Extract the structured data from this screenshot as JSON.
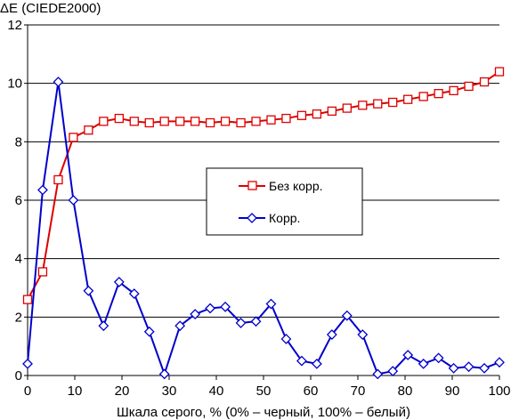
{
  "chart_data": {
    "type": "line",
    "title": "",
    "ylabel": "ΔE (CIEDE2000)",
    "xlabel": "Шкала серого, % (0% – черный, 100% – белый)",
    "xlim": [
      0,
      100
    ],
    "ylim": [
      0,
      12
    ],
    "xticks": [
      0,
      10,
      20,
      30,
      40,
      50,
      60,
      70,
      80,
      90,
      100
    ],
    "yticks": [
      0,
      2,
      4,
      6,
      8,
      10,
      12
    ],
    "grid": "horizontal",
    "legend_position": "center-right",
    "x": [
      0,
      3.2,
      6.5,
      9.7,
      12.9,
      16.1,
      19.4,
      22.6,
      25.8,
      29.0,
      32.3,
      35.5,
      38.7,
      41.9,
      45.2,
      48.4,
      51.6,
      54.8,
      58.1,
      61.3,
      64.5,
      67.7,
      71.0,
      74.2,
      77.4,
      80.6,
      83.9,
      87.1,
      90.3,
      93.5,
      96.8,
      100
    ],
    "series": [
      {
        "name": "Без корр.",
        "color": "#dd0000",
        "marker": "square",
        "values": [
          2.6,
          3.55,
          6.7,
          8.15,
          8.4,
          8.7,
          8.8,
          8.7,
          8.65,
          8.7,
          8.7,
          8.7,
          8.65,
          8.7,
          8.65,
          8.7,
          8.75,
          8.8,
          8.9,
          8.95,
          9.05,
          9.15,
          9.25,
          9.3,
          9.35,
          9.45,
          9.55,
          9.65,
          9.75,
          9.9,
          10.05,
          10.4
        ]
      },
      {
        "name": "Корр.",
        "color": "#0000cc",
        "marker": "diamond",
        "values": [
          0.4,
          6.35,
          10.05,
          6.0,
          2.9,
          1.7,
          3.2,
          2.8,
          1.5,
          0.05,
          1.7,
          2.1,
          2.3,
          2.35,
          1.8,
          1.85,
          2.45,
          1.25,
          0.5,
          0.4,
          1.4,
          2.05,
          1.4,
          0.05,
          0.15,
          0.7,
          0.4,
          0.6,
          0.25,
          0.3,
          0.25,
          0.45
        ]
      }
    ]
  }
}
